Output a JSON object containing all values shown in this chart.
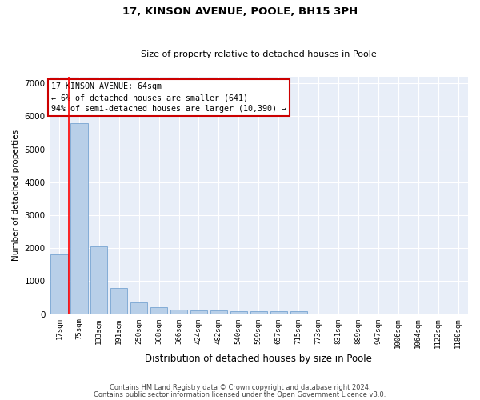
{
  "title1": "17, KINSON AVENUE, POOLE, BH15 3PH",
  "title2": "Size of property relative to detached houses in Poole",
  "xlabel": "Distribution of detached houses by size in Poole",
  "ylabel": "Number of detached properties",
  "categories": [
    "17sqm",
    "75sqm",
    "133sqm",
    "191sqm",
    "250sqm",
    "308sqm",
    "366sqm",
    "424sqm",
    "482sqm",
    "540sqm",
    "599sqm",
    "657sqm",
    "715sqm",
    "773sqm",
    "831sqm",
    "889sqm",
    "947sqm",
    "1006sqm",
    "1064sqm",
    "1122sqm",
    "1180sqm"
  ],
  "values": [
    1800,
    5800,
    2050,
    800,
    350,
    205,
    135,
    120,
    110,
    90,
    95,
    95,
    90,
    0,
    0,
    0,
    0,
    0,
    0,
    0,
    0
  ],
  "bar_color": "#b8cfe8",
  "bar_edge_color": "#6699cc",
  "annotation_text": "17 KINSON AVENUE: 64sqm\n← 6% of detached houses are smaller (641)\n94% of semi-detached houses are larger (10,390) →",
  "annotation_box_color": "#ffffff",
  "annotation_box_edge_color": "#cc0000",
  "ylim": [
    0,
    7200
  ],
  "yticks": [
    0,
    1000,
    2000,
    3000,
    4000,
    5000,
    6000,
    7000
  ],
  "background_color": "#e8eef8",
  "grid_color": "#ffffff",
  "footer1": "Contains HM Land Registry data © Crown copyright and database right 2024.",
  "footer2": "Contains public sector information licensed under the Open Government Licence v3.0."
}
